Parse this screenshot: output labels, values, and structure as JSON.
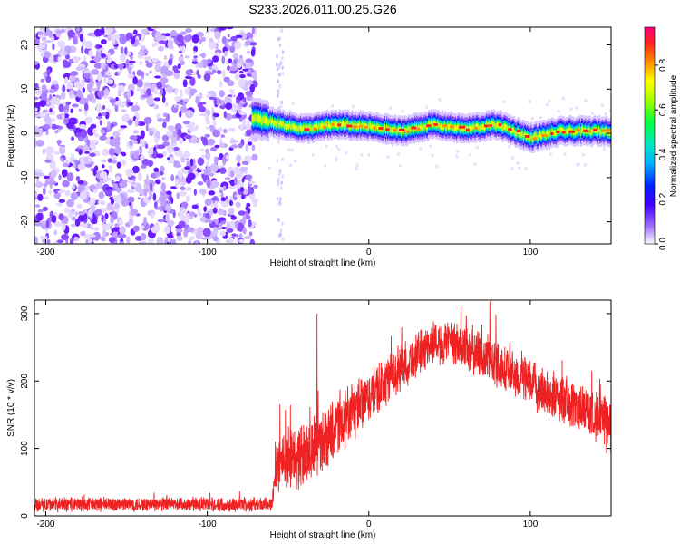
{
  "title": "S233.2026.011.00.25.G26",
  "chart_data": [
    {
      "type": "heatmap",
      "xlabel": "Height of straight line (km)",
      "ylabel": "Frequency (Hz)",
      "xlim": [
        -207,
        150
      ],
      "ylim": [
        -25,
        24
      ],
      "xticks": [
        -200,
        -100,
        0,
        100
      ],
      "yticks": [
        20,
        10,
        0,
        -10,
        -20
      ],
      "colorbar": {
        "label": "Normalized spectral amplitude",
        "range": [
          0,
          0.97
        ],
        "ticks": [
          0.0,
          0.2,
          0.4,
          0.6,
          0.8
        ]
      },
      "regions": [
        {
          "name": "noise",
          "x_range": [
            -207,
            -70
          ],
          "freq_range": [
            -25,
            24
          ],
          "amplitude_range": [
            0.05,
            0.25
          ]
        },
        {
          "name": "signal-ridge",
          "x_range": [
            -72,
            150
          ],
          "center_freq_hz": 0.8,
          "width_hz": 4,
          "amplitude_peak": 0.9
        }
      ],
      "ridge_center": [
        {
          "x": -72,
          "f": 3.5
        },
        {
          "x": -60,
          "f": 2.5
        },
        {
          "x": -40,
          "f": 1.0
        },
        {
          "x": -20,
          "f": 2.0
        },
        {
          "x": 0,
          "f": 1.5
        },
        {
          "x": 20,
          "f": 0.5
        },
        {
          "x": 40,
          "f": 2.0
        },
        {
          "x": 60,
          "f": 1.0
        },
        {
          "x": 80,
          "f": 2.0
        },
        {
          "x": 100,
          "f": -1.0
        },
        {
          "x": 120,
          "f": 0.5
        },
        {
          "x": 150,
          "f": 0.5
        }
      ]
    },
    {
      "type": "line",
      "xlabel": "Height of straight line (km)",
      "ylabel": "SNR (10 * v/v)",
      "xlim": [
        -207,
        150
      ],
      "ylim": [
        0,
        320
      ],
      "xticks": [
        -200,
        -100,
        0,
        100
      ],
      "yticks": [
        300,
        200,
        100,
        0
      ],
      "series": [
        {
          "name": "SNR",
          "color": "#ee2222",
          "envelope": [
            {
              "x": -207,
              "y": 17,
              "noise": 12
            },
            {
              "x": -60,
              "y": 17,
              "noise": 12
            },
            {
              "x": -58,
              "y": 80,
              "noise": 50
            },
            {
              "x": -40,
              "y": 90,
              "noise": 55
            },
            {
              "x": -20,
              "y": 130,
              "noise": 50
            },
            {
              "x": 0,
              "y": 175,
              "noise": 45
            },
            {
              "x": 20,
              "y": 220,
              "noise": 40
            },
            {
              "x": 40,
              "y": 258,
              "noise": 35
            },
            {
              "x": 60,
              "y": 250,
              "noise": 40
            },
            {
              "x": 80,
              "y": 225,
              "noise": 40
            },
            {
              "x": 100,
              "y": 195,
              "noise": 40
            },
            {
              "x": 120,
              "y": 170,
              "noise": 40
            },
            {
              "x": 140,
              "y": 150,
              "noise": 40
            },
            {
              "x": 150,
              "y": 130,
              "noise": 50
            }
          ],
          "spikes": [
            {
              "x": -32,
              "y": 300
            },
            {
              "x": -55,
              "y": 165
            },
            {
              "x": 75,
              "y": 318
            },
            {
              "x": 57,
              "y": 310
            }
          ]
        }
      ]
    }
  ]
}
